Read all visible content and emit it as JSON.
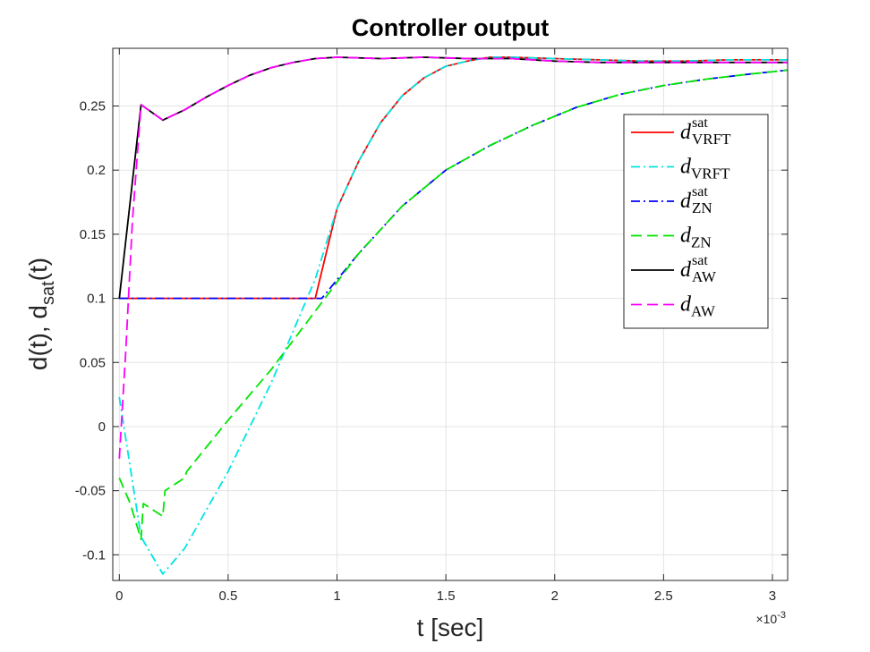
{
  "chart_data": {
    "type": "line",
    "title": "Controller output",
    "xlabel": "t [sec]",
    "ylabel": "d(t), d_sat(t)",
    "x_exponent_label": "×10",
    "x_exponent_power": "-3",
    "xlim": [
      -0.03,
      3.07
    ],
    "ylim": [
      -0.12,
      0.295
    ],
    "grid": true,
    "legend_position": "right",
    "x_ticks": [
      0,
      0.5,
      1,
      1.5,
      2,
      2.5,
      3
    ],
    "x_tick_labels": [
      "0",
      "0.5",
      "1",
      "1.5",
      "2",
      "2.5",
      "3"
    ],
    "y_ticks": [
      -0.1,
      -0.05,
      0,
      0.05,
      0.1,
      0.15,
      0.2,
      0.25
    ],
    "y_tick_labels": [
      "-0.1",
      "-0.05",
      "0",
      "0.05",
      "0.1",
      "0.15",
      "0.2",
      "0.25"
    ],
    "series": [
      {
        "name": "d_VRFT^sat",
        "name_main": "d",
        "name_sub": "VRFT",
        "name_sup": "sat",
        "color": "#ff0000",
        "dash": "",
        "x": [
          0,
          0.9,
          1.0,
          1.1,
          1.2,
          1.3,
          1.4,
          1.5,
          1.6,
          1.7,
          1.8,
          2.0,
          2.2,
          2.4,
          2.6,
          2.8,
          3.07
        ],
        "y": [
          0.1,
          0.1,
          0.17,
          0.207,
          0.237,
          0.258,
          0.272,
          0.281,
          0.285,
          0.288,
          0.288,
          0.287,
          0.286,
          0.285,
          0.285,
          0.286,
          0.286
        ]
      },
      {
        "name": "d_VRFT",
        "name_main": "d",
        "name_sub": "VRFT",
        "name_sup": "",
        "color": "#00e5e5",
        "dash": "10,4,2,4",
        "x": [
          0,
          0.1,
          0.2,
          0.3,
          0.5,
          0.7,
          0.9,
          1.0,
          1.1,
          1.2,
          1.3,
          1.4,
          1.5,
          1.6,
          1.7,
          1.8,
          2.0,
          2.2,
          2.4,
          2.6,
          2.8,
          3.07
        ],
        "y": [
          0.023,
          -0.086,
          -0.115,
          -0.095,
          -0.035,
          0.035,
          0.115,
          0.17,
          0.207,
          0.237,
          0.258,
          0.272,
          0.281,
          0.285,
          0.288,
          0.288,
          0.287,
          0.286,
          0.285,
          0.285,
          0.286,
          0.286
        ]
      },
      {
        "name": "d_ZN^sat",
        "name_main": "d",
        "name_sub": "ZN",
        "name_sup": "sat",
        "color": "#0000ff",
        "dash": "10,4,2,4",
        "x": [
          0,
          0.93,
          1.1,
          1.3,
          1.5,
          1.7,
          1.9,
          2.1,
          2.3,
          2.5,
          2.7,
          2.9,
          3.07
        ],
        "y": [
          0.1,
          0.1,
          0.135,
          0.172,
          0.2,
          0.219,
          0.235,
          0.249,
          0.259,
          0.266,
          0.271,
          0.275,
          0.278
        ]
      },
      {
        "name": "d_ZN",
        "name_main": "d",
        "name_sub": "ZN",
        "name_sup": "",
        "color": "#00e600",
        "dash": "12,6",
        "x": [
          0,
          0.05,
          0.1,
          0.11,
          0.2,
          0.21,
          0.3,
          0.31,
          0.5,
          0.7,
          0.9,
          1.1,
          1.3,
          1.5,
          1.7,
          1.9,
          2.1,
          2.3,
          2.5,
          2.7,
          2.9,
          3.07
        ],
        "y": [
          -0.04,
          -0.06,
          -0.088,
          -0.06,
          -0.07,
          -0.05,
          -0.04,
          -0.035,
          0.005,
          0.045,
          0.09,
          0.135,
          0.172,
          0.2,
          0.219,
          0.235,
          0.249,
          0.259,
          0.266,
          0.271,
          0.275,
          0.278
        ]
      },
      {
        "name": "d_AW^sat",
        "name_main": "d",
        "name_sub": "AW",
        "name_sup": "sat",
        "color": "#000000",
        "dash": "",
        "x": [
          0,
          0.1,
          0.2,
          0.3,
          0.4,
          0.5,
          0.6,
          0.7,
          0.8,
          0.9,
          1.0,
          1.2,
          1.4,
          1.6,
          1.8,
          2.0,
          2.2,
          2.4,
          2.6,
          2.8,
          3.07
        ],
        "y": [
          0.1,
          0.251,
          0.239,
          0.247,
          0.257,
          0.266,
          0.274,
          0.28,
          0.284,
          0.287,
          0.288,
          0.287,
          0.288,
          0.287,
          0.287,
          0.285,
          0.284,
          0.284,
          0.284,
          0.284,
          0.284
        ]
      },
      {
        "name": "d_AW",
        "name_main": "d",
        "name_sub": "AW",
        "name_sup": "",
        "color": "#ff00ff",
        "dash": "12,6",
        "x": [
          0,
          0.03,
          0.06,
          0.1,
          0.2,
          0.3,
          0.4,
          0.5,
          0.6,
          0.7,
          0.8,
          0.9,
          1.0,
          1.2,
          1.4,
          1.6,
          1.8,
          2.0,
          2.2,
          2.4,
          2.6,
          2.8,
          3.07
        ],
        "y": [
          -0.025,
          0.06,
          0.16,
          0.251,
          0.239,
          0.247,
          0.257,
          0.266,
          0.274,
          0.28,
          0.284,
          0.287,
          0.288,
          0.287,
          0.288,
          0.287,
          0.287,
          0.285,
          0.284,
          0.284,
          0.284,
          0.284,
          0.284
        ]
      }
    ]
  }
}
